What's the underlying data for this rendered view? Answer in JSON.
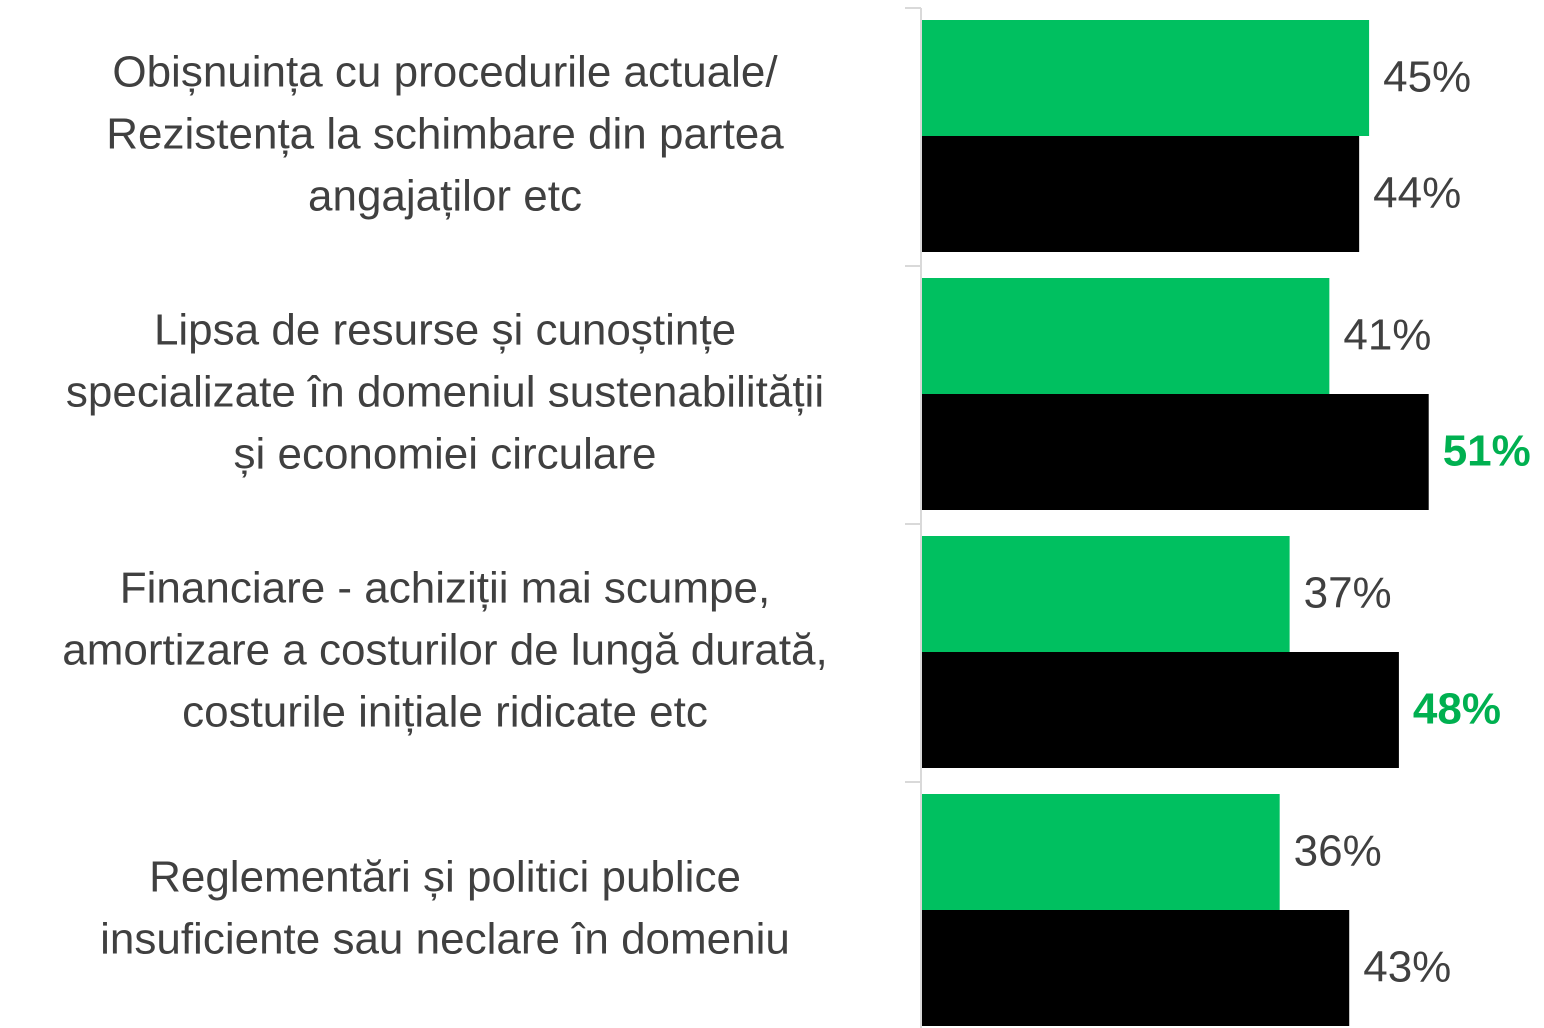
{
  "chart_data": {
    "type": "bar",
    "orientation": "horizontal",
    "categories": [
      [
        "Obișnuința cu procedurile actuale/",
        "Rezistența la schimbare din partea",
        "angajaților etc"
      ],
      [
        "Lipsa de resurse și cunoștințe",
        "specializate în domeniul sustenabilității",
        "și economiei circulare"
      ],
      [
        "Financiare - achiziții mai scumpe,",
        "amortizare a costurilor de lungă durată,",
        "costurile inițiale ridicate etc"
      ],
      [
        "Reglementări și politici publice",
        "insuficiente sau neclare în domeniu"
      ]
    ],
    "series": [
      {
        "color": "#00c060",
        "values": [
          45,
          41,
          37,
          36
        ],
        "value_labels": [
          "45%",
          "41%",
          "37%",
          "36%"
        ],
        "value_label_colors": [
          "#404040",
          "#404040",
          "#404040",
          "#404040"
        ],
        "value_label_bold": [
          false,
          false,
          false,
          false
        ]
      },
      {
        "color": "#000000",
        "values": [
          44,
          51,
          48,
          43
        ],
        "value_labels": [
          "44%",
          "51%",
          "48%",
          "43%"
        ],
        "value_label_colors": [
          "#404040",
          "#00b050",
          "#00b050",
          "#404040"
        ],
        "value_label_bold": [
          false,
          true,
          true,
          false
        ]
      }
    ],
    "xlim": [
      0,
      62
    ]
  }
}
